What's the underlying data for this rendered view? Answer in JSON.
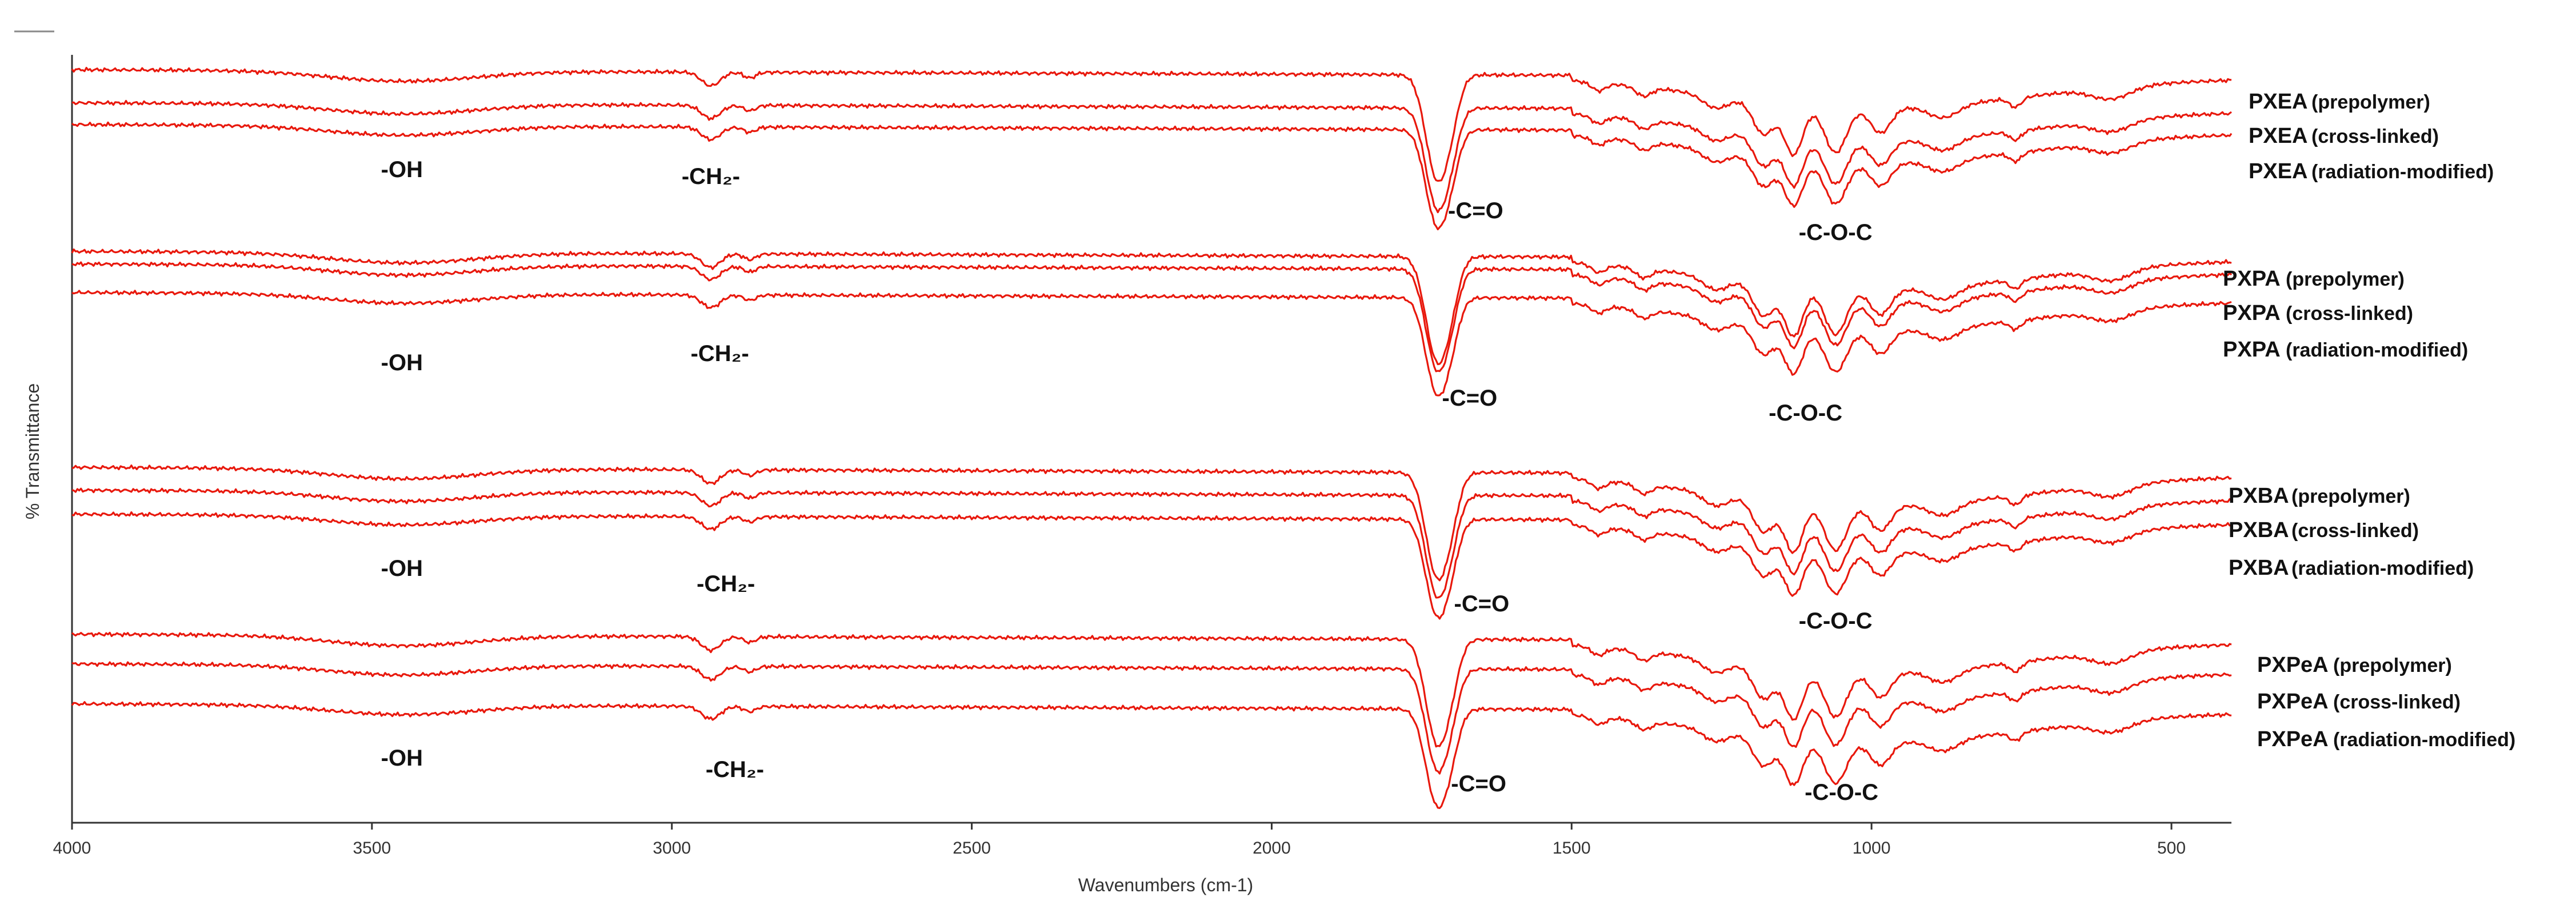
{
  "chart_data": {
    "type": "line",
    "title": "",
    "xlabel": "Wavenumbers (cm-1)",
    "ylabel": "% Transmittance",
    "xlim": [
      4000,
      400
    ],
    "x_reversed": true,
    "xticks": [
      4000,
      3500,
      3000,
      2500,
      2000,
      1500,
      1000,
      500
    ],
    "grid": false,
    "line_color": "#e8180c",
    "groups": [
      {
        "name": "PXEA",
        "series": [
          {
            "label": "PXEA",
            "state": "(prepolymer)"
          },
          {
            "label": "PXEA",
            "state": "(cross-linked)"
          },
          {
            "label": "PXEA",
            "state": "(radiation-modified)"
          }
        ],
        "annotations": [
          {
            "text": "-OH",
            "x": 3450
          },
          {
            "text": "-CH₂-",
            "x": 2935
          },
          {
            "text": "-C=O",
            "x": 1660
          },
          {
            "text": "-C-O-C",
            "x": 1060
          }
        ]
      },
      {
        "name": "PXPA",
        "series": [
          {
            "label": "PXPA",
            "state": "(prepolymer)"
          },
          {
            "label": "PXPA",
            "state": "(cross-linked)"
          },
          {
            "label": "PXPA",
            "state": "(radiation-modified)"
          }
        ],
        "annotations": [
          {
            "text": "-OH",
            "x": 3450
          },
          {
            "text": "-CH₂-",
            "x": 2920
          },
          {
            "text": "-C=O",
            "x": 1670
          },
          {
            "text": "-C-O-C",
            "x": 1110
          }
        ]
      },
      {
        "name": "PXBA",
        "series": [
          {
            "label": "PXBA",
            "state": "(prepolymer)"
          },
          {
            "label": "PXBA",
            "state": "(cross-linked)"
          },
          {
            "label": "PXBA",
            "state": "(radiation-modified)"
          }
        ],
        "annotations": [
          {
            "text": "-OH",
            "x": 3450
          },
          {
            "text": "-CH₂-",
            "x": 2910
          },
          {
            "text": "-C=O",
            "x": 1650
          },
          {
            "text": "-C-O-C",
            "x": 1060
          }
        ]
      },
      {
        "name": "PXPeA",
        "series": [
          {
            "label": "PXPeA",
            "state": "(prepolymer)"
          },
          {
            "label": "PXPeA",
            "state": "(cross-linked)"
          },
          {
            "label": "PXPeA",
            "state": "(radiation-modified)"
          }
        ],
        "annotations": [
          {
            "text": "-OH",
            "x": 3450
          },
          {
            "text": "-CH₂-",
            "x": 2895
          },
          {
            "text": "-C=O",
            "x": 1655
          },
          {
            "text": "-C-O-C",
            "x": 1050
          }
        ]
      }
    ],
    "bands": [
      {
        "name": "-OH",
        "center": 3450
      },
      {
        "name": "-CH₂-",
        "center": 2935
      },
      {
        "name": "-C=O",
        "center": 1720
      },
      {
        "name": "-C-O-C",
        "center": 1130
      }
    ]
  }
}
